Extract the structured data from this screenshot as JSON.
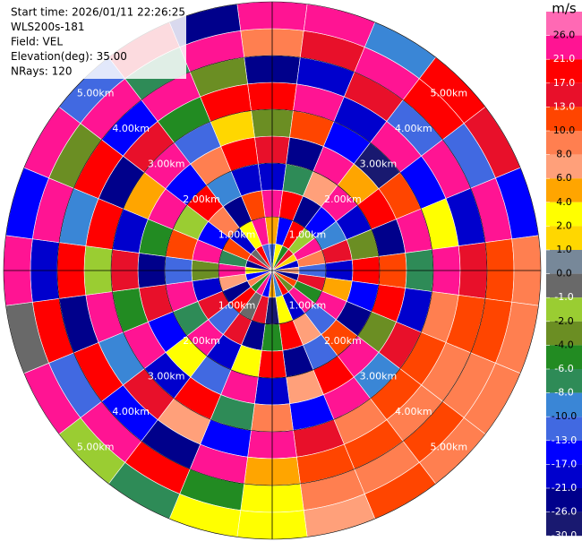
{
  "chart_data": {
    "type": "ppi",
    "info": [
      "Start time: 2026/01/11 22:26:25",
      "WLS200s-181",
      "Field: VEL",
      "Elevation(deg): 35.00",
      "NRays: 120"
    ],
    "units": "m/s",
    "azimuths": [
      0,
      15,
      30,
      45,
      60,
      75,
      90,
      105,
      120,
      135,
      150,
      165,
      180,
      195,
      210,
      225,
      240,
      255,
      270,
      285,
      300,
      315,
      330,
      345
    ],
    "range_edges": [
      0,
      0.5,
      1,
      1.5,
      2,
      2.5,
      3,
      3.5,
      4,
      4.5,
      5
    ],
    "values": [
      [
        -12,
        5,
        23,
        -20,
        14,
        -3,
        18,
        -25,
        9,
        24
      ],
      [
        3,
        -15,
        20,
        -8,
        -22,
        12,
        25,
        -18,
        16,
        22
      ],
      [
        -5,
        19,
        -24,
        7,
        23,
        -14,
        -19,
        15,
        24,
        -10
      ],
      [
        14,
        -2,
        -17,
        22,
        5,
        -27,
        21,
        -12,
        18,
        19
      ],
      [
        1,
        24,
        -9,
        -21,
        17,
        11,
        -16,
        23,
        -13,
        15
      ],
      [
        -18,
        8,
        15,
        -4,
        -25,
        24,
        3,
        -20,
        22,
        -15
      ],
      [
        6,
        -12,
        -20,
        18,
        12,
        -7,
        22,
        14,
        11,
        9
      ],
      [
        -22,
        16,
        4,
        -15,
        20,
        -18,
        9,
        11,
        12,
        9
      ],
      [
        11,
        -6,
        23,
        -26,
        -3,
        15,
        12,
        9,
        9,
        9
      ],
      [
        -3,
        21,
        -13,
        10,
        24,
        -10,
        11,
        9,
        12,
        9
      ],
      [
        17,
        -19,
        7,
        -11,
        18,
        22,
        9,
        11,
        9,
        10
      ],
      [
        -9,
        2,
        20,
        -24,
        6,
        -16,
        14,
        11,
        9,
        7
      ],
      [
        4,
        -27,
        -5,
        19,
        -20,
        8,
        25,
        5,
        3,
        3
      ],
      [
        -14,
        13,
        -22,
        3,
        21,
        -8,
        -17,
        24,
        -5,
        3
      ],
      [
        22,
        -1,
        16,
        -18,
        -12,
        19,
        7,
        -23,
        20,
        -7
      ],
      [
        -6,
        18,
        -11,
        25,
        2,
        -21,
        16,
        -14,
        23,
        -2
      ],
      [
        9,
        -23,
        14,
        -7,
        -16,
        23,
        -9,
        18,
        -11,
        22
      ],
      [
        -16,
        7,
        -19,
        21,
        13,
        -5,
        24,
        -26,
        17,
        -1
      ],
      [
        2,
        25,
        -3,
        -13,
        -24,
        16,
        -2,
        20,
        -19,
        24
      ],
      [
        -24,
        -8,
        24,
        12,
        -6,
        -19,
        19,
        -9,
        22,
        -17
      ],
      [
        15,
        11,
        -16,
        -2,
        23,
        4,
        -24,
        17,
        -4,
        21
      ],
      [
        -1,
        -20,
        9,
        17,
        -14,
        25,
        13,
        -15,
        24,
        -12
      ],
      [
        19,
        3,
        -25,
        -10,
        8,
        -12,
        -6,
        21,
        -8,
        16
      ],
      [
        -11,
        22,
        12,
        -19,
        19,
        1,
        20,
        -3,
        25,
        -22
      ]
    ],
    "rings": [
      {
        "value": 1,
        "label": "1.00km"
      },
      {
        "value": 2,
        "label": "2.00km"
      },
      {
        "value": 3,
        "label": "3.00km"
      },
      {
        "value": 4,
        "label": "4.00km"
      },
      {
        "value": 5,
        "label": "5.00km"
      }
    ],
    "colorbar": {
      "ticks": [
        {
          "value": 26,
          "label": "26.0"
        },
        {
          "value": 21,
          "label": "21.0"
        },
        {
          "value": 17,
          "label": "17.0"
        },
        {
          "value": 13,
          "label": "13.0"
        },
        {
          "value": 10,
          "label": "10.0"
        },
        {
          "value": 8,
          "label": "8.0"
        },
        {
          "value": 6,
          "label": "6.0"
        },
        {
          "value": 4,
          "label": "4.0"
        },
        {
          "value": 2,
          "label": "2.0"
        },
        {
          "value": 1,
          "label": "1.0"
        },
        {
          "value": 0,
          "label": "0.0"
        },
        {
          "value": -1,
          "label": "-1.0"
        },
        {
          "value": -2,
          "label": "-2.0"
        },
        {
          "value": -4,
          "label": "-4.0"
        },
        {
          "value": -6,
          "label": "-6.0"
        },
        {
          "value": -8,
          "label": "-8.0"
        },
        {
          "value": -10,
          "label": "-10.0"
        },
        {
          "value": -13,
          "label": "-13.0"
        },
        {
          "value": -17,
          "label": "-17.0"
        },
        {
          "value": -21,
          "label": "-21.0"
        },
        {
          "value": -26,
          "label": "-26.0"
        },
        {
          "value": -30,
          "label": "-30.0"
        }
      ],
      "colors": [
        "#ff69b4",
        "#ff1493",
        "#ff0000",
        "#e8102a",
        "#ff4500",
        "#ff7f50",
        "#ffa07a",
        "#ffa500",
        "#ffff00",
        "#ffd700",
        "#778899",
        "#696969",
        "#9acd32",
        "#6b8e23",
        "#228b22",
        "#2e8b57",
        "#3a86d6",
        "#4169e1",
        "#0000ff",
        "#0000cd",
        "#00008b",
        "#191970"
      ]
    }
  }
}
